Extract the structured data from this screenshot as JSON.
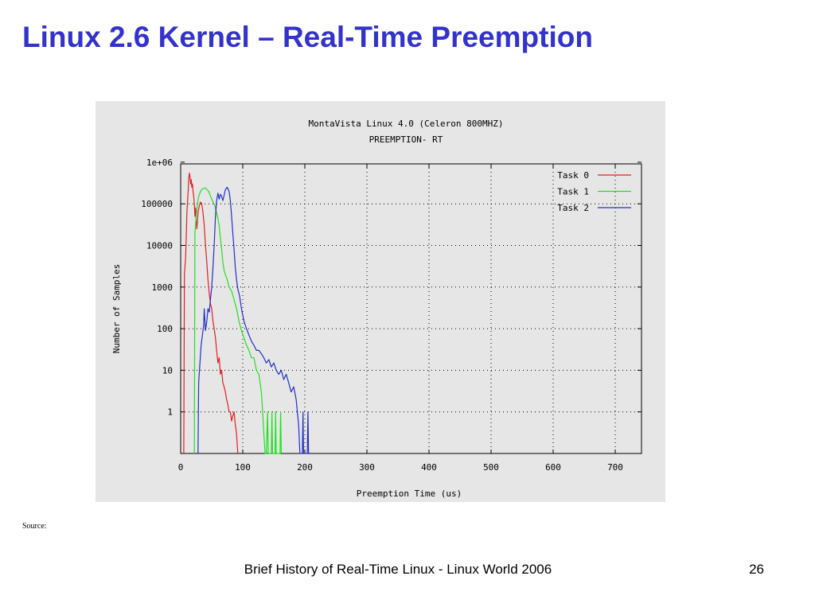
{
  "slide": {
    "title": "Linux 2.6 Kernel – Real-Time Preemption",
    "source_label": "Source:",
    "footer": "Brief History of Real-Time Linux - Linux World 2006",
    "page_number": "26"
  },
  "chart_data": {
    "type": "line",
    "title": "MontaVista Linux 4.0 (Celeron 800MHZ)",
    "subtitle": "PREEMPTION- RT",
    "xlabel": "Preemption Time (us)",
    "ylabel": "Number of Samples",
    "xlim": [
      0,
      750
    ],
    "ylim": [
      0.1,
      1000000
    ],
    "y_scale": "log",
    "x_ticks": [
      "0",
      "100",
      "200",
      "300",
      "400",
      "500",
      "600",
      "700"
    ],
    "y_ticks": [
      "1",
      "10",
      "100",
      "1000",
      "10000",
      "100000",
      "1e+06"
    ],
    "grid": true,
    "legend_position": "top-right",
    "series": [
      {
        "name": "Task 0",
        "color": "#e02020",
        "points": [
          [
            5,
            0.1
          ],
          [
            6,
            2000
          ],
          [
            8,
            5000
          ],
          [
            9,
            15000
          ],
          [
            10,
            60000
          ],
          [
            12,
            200000
          ],
          [
            13,
            400000
          ],
          [
            14,
            550000
          ],
          [
            15,
            450000
          ],
          [
            16,
            300000
          ],
          [
            17,
            380000
          ],
          [
            18,
            250000
          ],
          [
            19,
            300000
          ],
          [
            20,
            200000
          ],
          [
            21,
            150000
          ],
          [
            22,
            100000
          ],
          [
            23,
            50000
          ],
          [
            24,
            80000
          ],
          [
            25,
            40000
          ],
          [
            26,
            25000
          ],
          [
            28,
            60000
          ],
          [
            30,
            90000
          ],
          [
            32,
            110000
          ],
          [
            34,
            100000
          ],
          [
            36,
            60000
          ],
          [
            38,
            30000
          ],
          [
            40,
            10000
          ],
          [
            42,
            4000
          ],
          [
            44,
            1500
          ],
          [
            46,
            700
          ],
          [
            48,
            400
          ],
          [
            50,
            300
          ],
          [
            52,
            150
          ],
          [
            54,
            100
          ],
          [
            56,
            60
          ],
          [
            58,
            30
          ],
          [
            60,
            15
          ],
          [
            62,
            20
          ],
          [
            64,
            8
          ],
          [
            66,
            10
          ],
          [
            68,
            5
          ],
          [
            70,
            4
          ],
          [
            72,
            3
          ],
          [
            74,
            2
          ],
          [
            76,
            1.5
          ],
          [
            78,
            1
          ],
          [
            80,
            1
          ],
          [
            82,
            0.6
          ],
          [
            84,
            0.8
          ],
          [
            86,
            1
          ],
          [
            88,
            0.5
          ],
          [
            90,
            0.3
          ],
          [
            92,
            0.1
          ]
        ]
      },
      {
        "name": "Task 1",
        "color": "#20e020",
        "points": [
          [
            22,
            0.1
          ],
          [
            23,
            20000
          ],
          [
            25,
            50000
          ],
          [
            27,
            100000
          ],
          [
            29,
            150000
          ],
          [
            32,
            200000
          ],
          [
            35,
            230000
          ],
          [
            40,
            240000
          ],
          [
            45,
            200000
          ],
          [
            50,
            130000
          ],
          [
            55,
            90000
          ],
          [
            60,
            45000
          ],
          [
            62,
            30000
          ],
          [
            64,
            15000
          ],
          [
            66,
            8000
          ],
          [
            68,
            4000
          ],
          [
            70,
            2500
          ],
          [
            72,
            2000
          ],
          [
            75,
            1500
          ],
          [
            78,
            1000
          ],
          [
            82,
            800
          ],
          [
            86,
            500
          ],
          [
            90,
            300
          ],
          [
            94,
            150
          ],
          [
            98,
            90
          ],
          [
            102,
            60
          ],
          [
            106,
            40
          ],
          [
            110,
            30
          ],
          [
            114,
            20
          ],
          [
            118,
            20
          ],
          [
            122,
            10
          ],
          [
            126,
            8
          ],
          [
            128,
            5
          ],
          [
            130,
            3
          ],
          [
            132,
            1
          ],
          [
            134,
            0.3
          ],
          [
            136,
            0.1
          ],
          [
            138,
            0.1
          ],
          [
            140,
            1
          ],
          [
            141,
            0.1
          ],
          [
            146,
            0.1
          ],
          [
            147,
            1
          ],
          [
            148,
            0.1
          ],
          [
            152,
            0.1
          ],
          [
            153,
            1
          ],
          [
            154,
            0.1
          ],
          [
            160,
            0.1
          ],
          [
            161,
            1
          ],
          [
            162,
            0.1
          ]
        ]
      },
      {
        "name": "Task 2",
        "color": "#2030c8",
        "points": [
          [
            28,
            0.1
          ],
          [
            29,
            5
          ],
          [
            31,
            15
          ],
          [
            33,
            40
          ],
          [
            35,
            70
          ],
          [
            37,
            120
          ],
          [
            38,
            300
          ],
          [
            40,
            90
          ],
          [
            42,
            150
          ],
          [
            44,
            300
          ],
          [
            46,
            250
          ],
          [
            48,
            500
          ],
          [
            50,
            1000
          ],
          [
            52,
            3000
          ],
          [
            54,
            10000
          ],
          [
            56,
            50000
          ],
          [
            58,
            120000
          ],
          [
            60,
            180000
          ],
          [
            62,
            130000
          ],
          [
            64,
            170000
          ],
          [
            66,
            150000
          ],
          [
            68,
            120000
          ],
          [
            70,
            160000
          ],
          [
            72,
            220000
          ],
          [
            75,
            250000
          ],
          [
            78,
            200000
          ],
          [
            80,
            120000
          ],
          [
            82,
            50000
          ],
          [
            84,
            20000
          ],
          [
            86,
            8000
          ],
          [
            88,
            3000
          ],
          [
            90,
            1500
          ],
          [
            92,
            900
          ],
          [
            95,
            600
          ],
          [
            98,
            300
          ],
          [
            102,
            150
          ],
          [
            106,
            100
          ],
          [
            110,
            70
          ],
          [
            114,
            50
          ],
          [
            118,
            40
          ],
          [
            122,
            30
          ],
          [
            126,
            30
          ],
          [
            130,
            25
          ],
          [
            134,
            20
          ],
          [
            138,
            15
          ],
          [
            142,
            18
          ],
          [
            146,
            12
          ],
          [
            150,
            15
          ],
          [
            154,
            10
          ],
          [
            158,
            8
          ],
          [
            162,
            10
          ],
          [
            166,
            6
          ],
          [
            170,
            8
          ],
          [
            174,
            5
          ],
          [
            178,
            3
          ],
          [
            182,
            4
          ],
          [
            186,
            2
          ],
          [
            188,
            1
          ],
          [
            190,
            0.5
          ],
          [
            192,
            0.1
          ],
          [
            196,
            0.1
          ],
          [
            197,
            1
          ],
          [
            198,
            0.1
          ],
          [
            204,
            0.1
          ],
          [
            205,
            1
          ],
          [
            206,
            0.1
          ]
        ]
      }
    ]
  }
}
